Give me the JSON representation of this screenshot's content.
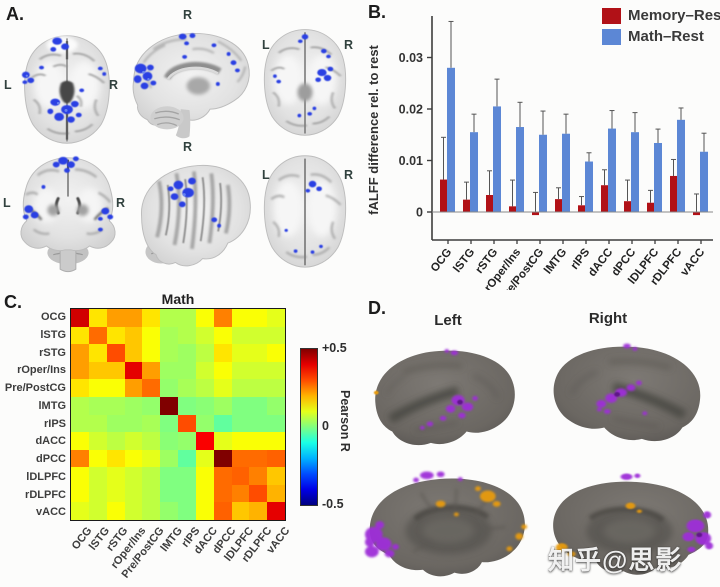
{
  "panels": {
    "a": {
      "label": "A.",
      "left": "L",
      "right": "R"
    },
    "b": {
      "label": "B."
    },
    "c": {
      "label": "C."
    },
    "d": {
      "label": "D.",
      "left_title": "Left",
      "right_title": "Right"
    }
  },
  "watermark": "知乎@思影",
  "colors": {
    "memory_red": "#b11117",
    "math_blue": "#5c87d5",
    "activation_blue": "#2b41e3",
    "surface_purple": "#9e2fd8",
    "surface_orange": "#e89b10",
    "surface_gray": "#6e6a66"
  },
  "chart_data": [
    {
      "type": "bar",
      "title": "",
      "xlabel": "",
      "ylabel": "fALFF difference rel. to rest",
      "categories": [
        "OCG",
        "lSTG",
        "rSTG",
        "rOper/Ins",
        "Pre/PostCG",
        "lMTG",
        "rIPS",
        "dACC",
        "dPCC",
        "lDLPFC",
        "rDLPFC",
        "vACC"
      ],
      "series": [
        {
          "name": "Memory–Rest",
          "color": "#b11117",
          "values": [
            0.0063,
            0.0024,
            0.0033,
            0.0011,
            -0.0006,
            0.0025,
            0.0013,
            0.0052,
            0.0021,
            0.0018,
            0.007,
            -0.0006
          ],
          "errors": [
            0.0082,
            0.0034,
            0.0047,
            0.0051,
            0.0044,
            0.0022,
            0.0017,
            0.003,
            0.0041,
            0.0024,
            0.0032,
            0.0041
          ]
        },
        {
          "name": "Math–Rest",
          "color": "#5c87d5",
          "values": [
            0.028,
            0.0155,
            0.0205,
            0.0165,
            0.015,
            0.0152,
            0.0098,
            0.0162,
            0.0155,
            0.0134,
            0.0179,
            0.0117
          ],
          "errors": [
            0.009,
            0.0035,
            0.0053,
            0.0048,
            0.0046,
            0.0038,
            0.0017,
            0.0035,
            0.0038,
            0.0027,
            0.0023,
            0.0036
          ]
        }
      ],
      "yticks": [
        0,
        0.01,
        0.02,
        0.03
      ],
      "ylim": [
        -0.0055,
        0.038
      ],
      "grid": false,
      "legend_position": "top-right"
    },
    {
      "type": "heatmap",
      "title": "Math",
      "labels": [
        "OCG",
        "lSTG",
        "rSTG",
        "rOper/Ins",
        "Pre/PostCG",
        "lMTG",
        "rIPS",
        "dACC",
        "dPCC",
        "lDLPFC",
        "rDLPFC",
        "vACC"
      ],
      "matrix": [
        [
          0.42,
          0.15,
          0.22,
          0.22,
          0.15,
          0.05,
          0.05,
          0.12,
          0.25,
          0.12,
          0.12,
          0.1
        ],
        [
          0.15,
          0.27,
          0.15,
          0.18,
          0.12,
          0.04,
          0.05,
          0.08,
          0.12,
          0.08,
          0.08,
          0.08
        ],
        [
          0.22,
          0.15,
          0.3,
          0.18,
          0.12,
          0.04,
          0.03,
          0.06,
          0.15,
          0.1,
          0.1,
          0.12
        ],
        [
          0.22,
          0.18,
          0.18,
          0.4,
          0.22,
          0.03,
          0.03,
          0.08,
          0.12,
          0.08,
          0.08,
          0.08
        ],
        [
          0.15,
          0.12,
          0.12,
          0.22,
          0.27,
          0.02,
          0.04,
          0.06,
          0.1,
          0.06,
          0.06,
          0.06
        ],
        [
          0.05,
          0.04,
          0.04,
          0.03,
          0.02,
          0.5,
          0.0,
          0.01,
          0.03,
          0.0,
          0.0,
          0.02
        ],
        [
          0.05,
          0.05,
          0.03,
          0.03,
          0.04,
          0.0,
          0.3,
          0.02,
          -0.03,
          0.0,
          0.0,
          0.0
        ],
        [
          0.12,
          0.08,
          0.06,
          0.08,
          0.06,
          0.01,
          0.02,
          0.38,
          0.1,
          0.12,
          0.12,
          0.12
        ],
        [
          0.25,
          0.12,
          0.15,
          0.12,
          0.1,
          0.03,
          -0.03,
          0.1,
          0.5,
          0.27,
          0.27,
          0.28
        ],
        [
          0.12,
          0.08,
          0.1,
          0.08,
          0.06,
          0.0,
          0.0,
          0.12,
          0.27,
          0.28,
          0.25,
          0.18
        ],
        [
          0.12,
          0.08,
          0.1,
          0.08,
          0.06,
          0.0,
          0.0,
          0.12,
          0.27,
          0.25,
          0.3,
          0.2
        ],
        [
          0.1,
          0.08,
          0.12,
          0.08,
          0.06,
          0.02,
          0.0,
          0.12,
          0.28,
          0.18,
          0.2,
          0.4
        ]
      ],
      "vmin": -0.5,
      "vmax": 0.5,
      "colormap": "jet",
      "colorbar": {
        "top": "+0.5",
        "mid": "0",
        "bottom": "-0.5",
        "label": "Pearson R"
      }
    }
  ]
}
